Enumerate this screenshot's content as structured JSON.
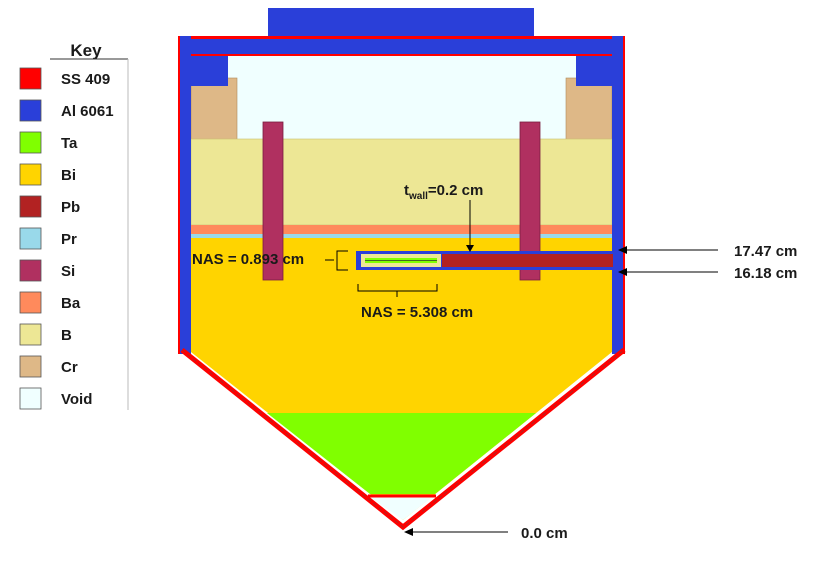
{
  "key": {
    "title": "Key",
    "items": [
      {
        "label": "SS 409",
        "color": "#ff0000"
      },
      {
        "label": "Al 6061",
        "color": "#2a3fd9"
      },
      {
        "label": "Ta",
        "color": "#80ff00"
      },
      {
        "label": "Bi",
        "color": "#ffd400"
      },
      {
        "label": "Pb",
        "color": "#b22222"
      },
      {
        "label": "Pr",
        "color": "#99d9ea"
      },
      {
        "label": "Si",
        "color": "#b03060"
      },
      {
        "label": "Ba",
        "color": "#ff8a5c"
      },
      {
        "label": "B",
        "color": "#ede795"
      },
      {
        "label": "Cr",
        "color": "#deb887"
      },
      {
        "label": "Void",
        "color": "#f0ffff"
      }
    ]
  },
  "annotations": {
    "twall_prefix": "t",
    "twall_sub": "wall",
    "twall_value": "=0.2 cm",
    "nas_height": "NAS = 0.893 cm",
    "nas_width": "NAS = 5.308 cm",
    "level_top": "17.47 cm",
    "level_bottom": "16.18 cm",
    "level_zero": "0.0 cm"
  }
}
